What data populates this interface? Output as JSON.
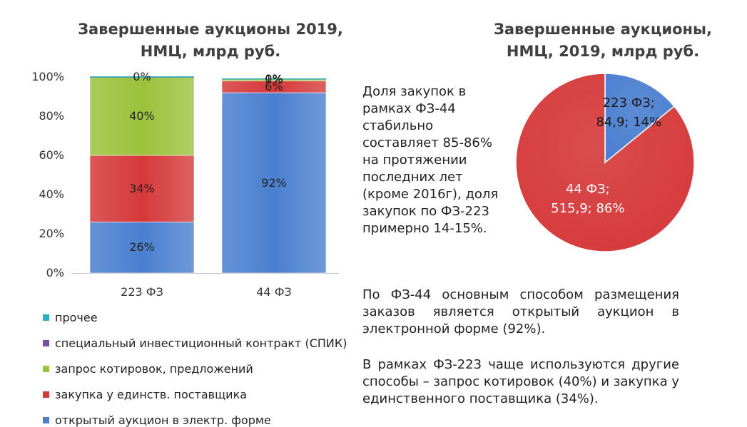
{
  "notes": {
    "share": "Доля закупок в рамках ФЗ-44 стабильно составляет 85-86% на протяжении последних лет (кроме 2016г), доля закупок по ФЗ-223 примерно 14-15%.",
    "fz44": "По ФЗ-44 основным способом размещения заказов является открытый аукцион в электронной форме (92%).",
    "fz223": "В рамках ФЗ-223 чаще используются другие способы – запрос котировок (40%) и закупка у единственного поставщика (34%)."
  },
  "chart_data": [
    {
      "type": "bar",
      "stacked": true,
      "title_lines": [
        "Завершенные аукционы 2019,",
        "НМЦ, млрд руб."
      ],
      "categories": [
        "223 ФЗ",
        "44 ФЗ"
      ],
      "y_ticks": [
        "0%",
        "20%",
        "40%",
        "60%",
        "80%",
        "100%"
      ],
      "ylim": [
        0,
        100
      ],
      "grid": false,
      "legend_position": "bottom",
      "series": [
        {
          "name": "открытый аукцион в электр. форме",
          "color": "#4a7fd0",
          "values": [
            26,
            92
          ],
          "labels": [
            "26%",
            "92%"
          ]
        },
        {
          "name": "закупка у единств. поставщика",
          "color": "#d6393a",
          "values": [
            34,
            6
          ],
          "labels": [
            "34%",
            "6%"
          ]
        },
        {
          "name": "запрос котировок, предложений",
          "color": "#9bc23c",
          "values": [
            40,
            1
          ],
          "labels": [
            "40%",
            "1%"
          ]
        },
        {
          "name": "специальный инвестиционный контракт (СПИК)",
          "color": "#7b4fa6",
          "values": [
            0,
            0
          ],
          "labels": [
            "",
            "0%"
          ]
        },
        {
          "name": "прочее",
          "color": "#2ab0c5",
          "values": [
            0,
            0
          ],
          "labels": [
            "0%",
            "0%"
          ]
        }
      ],
      "legend_order": [
        "прочее",
        "специальный инвестиционный контракт (СПИК)",
        "запрос котировок, предложений",
        "закупка у единств. поставщика",
        "открытый аукцион в электр. форме"
      ]
    },
    {
      "type": "pie",
      "title_lines": [
        "Завершенные аукционы,",
        "НМЦ, 2019, млрд руб."
      ],
      "slices": [
        {
          "label_lines": [
            "223 ФЗ;",
            "84,9; 14%"
          ],
          "value": 84.9,
          "percent": 14,
          "color": "#4a7fd0"
        },
        {
          "label_lines": [
            "44 ФЗ;",
            "515,9; 86%"
          ],
          "value": 515.9,
          "percent": 86,
          "color": "#d6393a"
        }
      ]
    }
  ]
}
